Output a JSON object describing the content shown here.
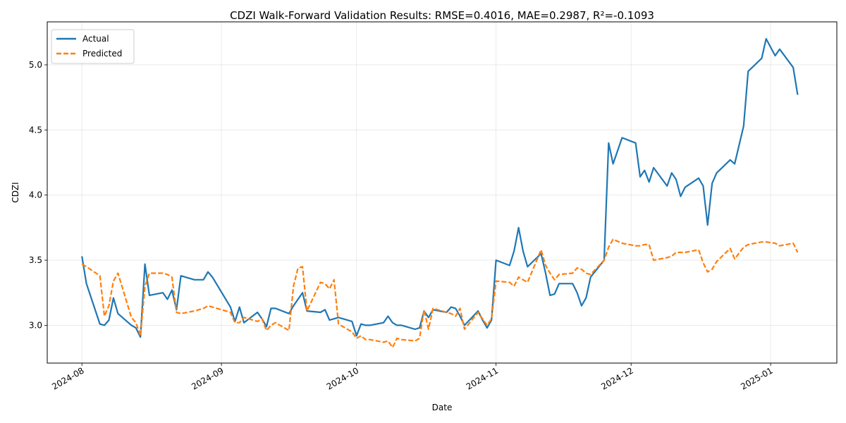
{
  "chart_data": {
    "type": "line",
    "title": "CDZI Walk-Forward Validation Results: RMSE=0.4016, MAE=0.2987, R²=-0.1093",
    "xlabel": "Date",
    "ylabel": "CDZI",
    "x_tick_labels": [
      "2024-08",
      "2024-09",
      "2024-10",
      "2024-11",
      "2024-12",
      "2025-01"
    ],
    "x_tick_days": [
      0,
      31,
      61,
      92,
      122,
      153
    ],
    "xlim_days": [
      -7.7,
      167.7
    ],
    "y_tick_labels": [
      "3.0",
      "3.5",
      "4.0",
      "4.5",
      "5.0"
    ],
    "y_tick_values": [
      3.0,
      3.5,
      4.0,
      4.5,
      5.0
    ],
    "ylim": [
      2.71,
      5.33
    ],
    "grid": true,
    "legend_position": "top-left",
    "series": [
      {
        "name": "Actual",
        "color": "#1f77b4",
        "style": "solid",
        "points": [
          [
            0,
            3.53
          ],
          [
            1,
            3.32
          ],
          [
            4,
            3.01
          ],
          [
            5,
            3.0
          ],
          [
            6,
            3.04
          ],
          [
            7,
            3.21
          ],
          [
            8,
            3.09
          ],
          [
            11,
            3.0
          ],
          [
            12,
            2.98
          ],
          [
            13,
            2.91
          ],
          [
            14,
            3.47
          ],
          [
            15,
            3.23
          ],
          [
            18,
            3.25
          ],
          [
            19,
            3.2
          ],
          [
            20,
            3.27
          ],
          [
            21,
            3.12
          ],
          [
            22,
            3.38
          ],
          [
            25,
            3.35
          ],
          [
            27,
            3.35
          ],
          [
            28,
            3.41
          ],
          [
            29,
            3.37
          ],
          [
            33,
            3.14
          ],
          [
            34,
            3.03
          ],
          [
            35,
            3.14
          ],
          [
            36,
            3.02
          ],
          [
            39,
            3.1
          ],
          [
            40,
            3.05
          ],
          [
            41,
            2.99
          ],
          [
            42,
            3.13
          ],
          [
            43,
            3.13
          ],
          [
            46,
            3.09
          ],
          [
            47,
            3.15
          ],
          [
            49,
            3.25
          ],
          [
            50,
            3.11
          ],
          [
            53,
            3.1
          ],
          [
            54,
            3.12
          ],
          [
            55,
            3.04
          ],
          [
            56,
            3.05
          ],
          [
            57,
            3.06
          ],
          [
            60,
            3.03
          ],
          [
            61,
            2.92
          ],
          [
            62,
            3.01
          ],
          [
            63,
            3.0
          ],
          [
            64,
            3.0
          ],
          [
            67,
            3.02
          ],
          [
            68,
            3.07
          ],
          [
            69,
            3.02
          ],
          [
            70,
            3.0
          ],
          [
            71,
            3.0
          ],
          [
            74,
            2.97
          ],
          [
            75,
            2.98
          ],
          [
            76,
            3.11
          ],
          [
            77,
            3.06
          ],
          [
            78,
            3.12
          ],
          [
            81,
            3.1
          ],
          [
            82,
            3.14
          ],
          [
            83,
            3.13
          ],
          [
            84,
            3.07
          ],
          [
            85,
            3.0
          ],
          [
            88,
            3.11
          ],
          [
            89,
            3.04
          ],
          [
            90,
            2.98
          ],
          [
            91,
            3.04
          ],
          [
            92,
            3.5
          ],
          [
            95,
            3.46
          ],
          [
            96,
            3.57
          ],
          [
            97,
            3.75
          ],
          [
            98,
            3.57
          ],
          [
            99,
            3.45
          ],
          [
            102,
            3.55
          ],
          [
            103,
            3.4
          ],
          [
            104,
            3.23
          ],
          [
            105,
            3.24
          ],
          [
            106,
            3.32
          ],
          [
            109,
            3.32
          ],
          [
            110,
            3.25
          ],
          [
            111,
            3.15
          ],
          [
            112,
            3.21
          ],
          [
            113,
            3.37
          ],
          [
            116,
            3.5
          ],
          [
            117,
            4.4
          ],
          [
            118,
            4.24
          ],
          [
            120,
            4.44
          ],
          [
            123,
            4.4
          ],
          [
            124,
            4.14
          ],
          [
            125,
            4.19
          ],
          [
            126,
            4.1
          ],
          [
            127,
            4.21
          ],
          [
            130,
            4.07
          ],
          [
            131,
            4.17
          ],
          [
            132,
            4.12
          ],
          [
            133,
            3.99
          ],
          [
            134,
            4.06
          ],
          [
            137,
            4.13
          ],
          [
            138,
            4.07
          ],
          [
            139,
            3.77
          ],
          [
            140,
            4.09
          ],
          [
            141,
            4.17
          ],
          [
            144,
            4.27
          ],
          [
            145,
            4.24
          ],
          [
            147,
            4.53
          ],
          [
            148,
            4.95
          ],
          [
            151,
            5.05
          ],
          [
            152,
            5.2
          ],
          [
            154,
            5.07
          ],
          [
            155,
            5.12
          ],
          [
            158,
            4.98
          ],
          [
            159,
            4.77
          ]
        ]
      },
      {
        "name": "Predicted",
        "color": "#ff7f0e",
        "style": "dashed",
        "points": [
          [
            0,
            3.47
          ],
          [
            1,
            3.45
          ],
          [
            4,
            3.38
          ],
          [
            5,
            3.07
          ],
          [
            6,
            3.15
          ],
          [
            7,
            3.34
          ],
          [
            8,
            3.4
          ],
          [
            11,
            3.06
          ],
          [
            12,
            3.02
          ],
          [
            13,
            2.92
          ],
          [
            14,
            3.3
          ],
          [
            15,
            3.4
          ],
          [
            18,
            3.4
          ],
          [
            19,
            3.39
          ],
          [
            20,
            3.37
          ],
          [
            21,
            3.1
          ],
          [
            22,
            3.09
          ],
          [
            25,
            3.11
          ],
          [
            27,
            3.13
          ],
          [
            28,
            3.15
          ],
          [
            29,
            3.14
          ],
          [
            33,
            3.1
          ],
          [
            34,
            3.02
          ],
          [
            35,
            3.02
          ],
          [
            36,
            3.06
          ],
          [
            39,
            3.03
          ],
          [
            40,
            3.05
          ],
          [
            41,
            2.96
          ],
          [
            42,
            3.0
          ],
          [
            43,
            3.02
          ],
          [
            46,
            2.96
          ],
          [
            47,
            3.3
          ],
          [
            48,
            3.44
          ],
          [
            49,
            3.45
          ],
          [
            50,
            3.11
          ],
          [
            53,
            3.33
          ],
          [
            54,
            3.32
          ],
          [
            55,
            3.28
          ],
          [
            56,
            3.35
          ],
          [
            57,
            3.01
          ],
          [
            60,
            2.95
          ],
          [
            61,
            2.9
          ],
          [
            62,
            2.92
          ],
          [
            63,
            2.89
          ],
          [
            64,
            2.89
          ],
          [
            67,
            2.87
          ],
          [
            68,
            2.88
          ],
          [
            69,
            2.83
          ],
          [
            70,
            2.9
          ],
          [
            71,
            2.89
          ],
          [
            74,
            2.88
          ],
          [
            75,
            2.9
          ],
          [
            76,
            3.12
          ],
          [
            77,
            2.97
          ],
          [
            78,
            3.13
          ],
          [
            81,
            3.1
          ],
          [
            82,
            3.09
          ],
          [
            83,
            3.07
          ],
          [
            84,
            3.13
          ],
          [
            85,
            2.97
          ],
          [
            88,
            3.1
          ],
          [
            89,
            3.05
          ],
          [
            90,
            3.0
          ],
          [
            91,
            3.05
          ],
          [
            92,
            3.34
          ],
          [
            95,
            3.33
          ],
          [
            96,
            3.3
          ],
          [
            97,
            3.37
          ],
          [
            98,
            3.35
          ],
          [
            99,
            3.33
          ],
          [
            102,
            3.58
          ],
          [
            103,
            3.46
          ],
          [
            104,
            3.4
          ],
          [
            105,
            3.35
          ],
          [
            106,
            3.39
          ],
          [
            109,
            3.4
          ],
          [
            110,
            3.44
          ],
          [
            111,
            3.43
          ],
          [
            112,
            3.4
          ],
          [
            113,
            3.39
          ],
          [
            116,
            3.5
          ],
          [
            117,
            3.6
          ],
          [
            118,
            3.66
          ],
          [
            120,
            3.63
          ],
          [
            123,
            3.61
          ],
          [
            124,
            3.61
          ],
          [
            125,
            3.62
          ],
          [
            126,
            3.62
          ],
          [
            127,
            3.5
          ],
          [
            130,
            3.52
          ],
          [
            131,
            3.53
          ],
          [
            132,
            3.56
          ],
          [
            133,
            3.56
          ],
          [
            134,
            3.56
          ],
          [
            137,
            3.58
          ],
          [
            138,
            3.48
          ],
          [
            139,
            3.41
          ],
          [
            140,
            3.43
          ],
          [
            141,
            3.49
          ],
          [
            144,
            3.59
          ],
          [
            145,
            3.51
          ],
          [
            147,
            3.6
          ],
          [
            148,
            3.62
          ],
          [
            151,
            3.64
          ],
          [
            152,
            3.64
          ],
          [
            154,
            3.63
          ],
          [
            155,
            3.61
          ],
          [
            158,
            3.63
          ],
          [
            159,
            3.56
          ]
        ]
      }
    ]
  }
}
